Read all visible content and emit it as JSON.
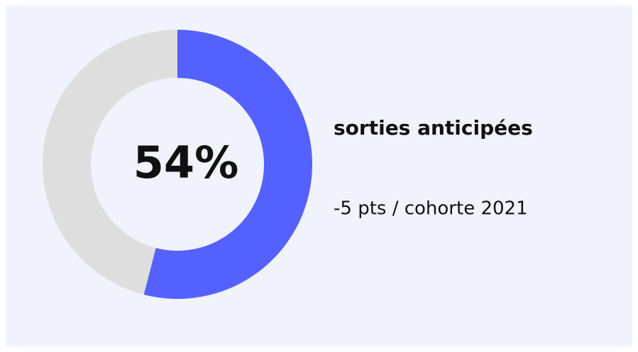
{
  "chart_data": {
    "type": "donut",
    "values": [
      54
    ],
    "value_labels": [
      "54%"
    ],
    "ylim": [
      0,
      100
    ],
    "color": "#5561ff",
    "track_color": "#dedede",
    "label": "sorties anticipées",
    "subtitle": "-5 pts / cohorte 2021"
  }
}
